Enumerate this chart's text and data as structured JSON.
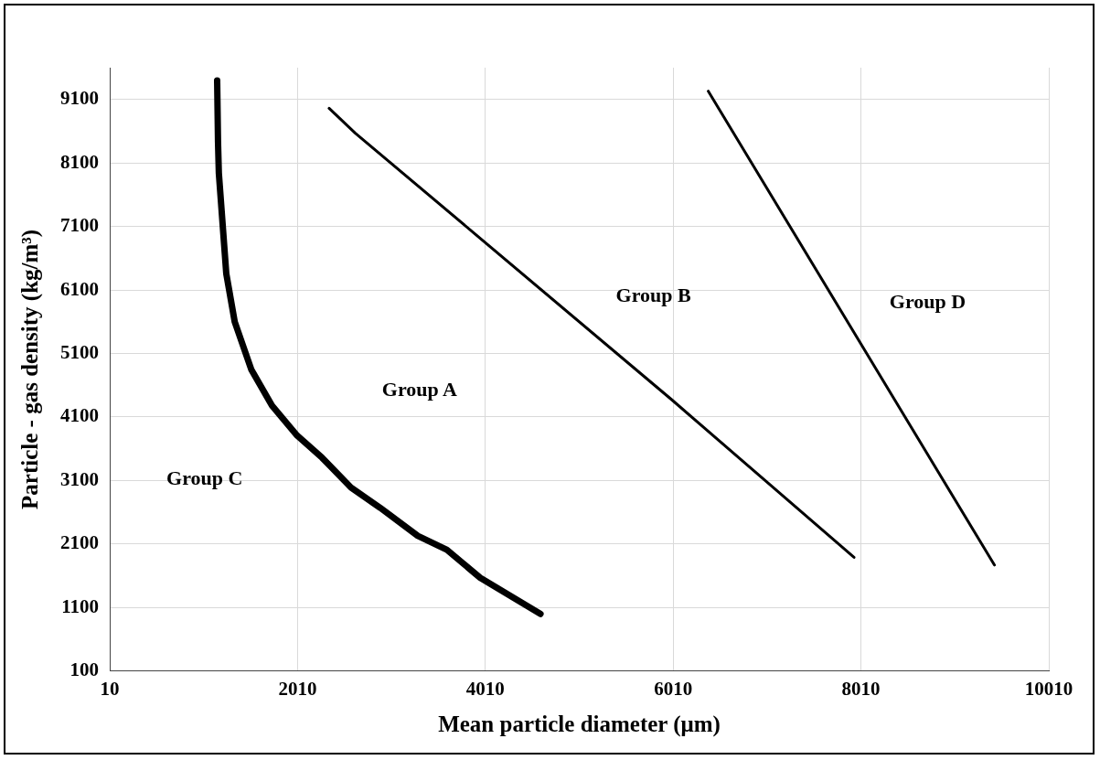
{
  "chart_data": {
    "type": "line",
    "xlabel": "Mean particle diameter (μm)",
    "ylabel": "Particle - gas density (kg/m³)",
    "xlim": [
      10,
      10010
    ],
    "xticks": [
      10,
      2010,
      4010,
      6010,
      8010,
      10010
    ],
    "ylim": [
      100,
      9600
    ],
    "yticks": [
      100,
      1100,
      2100,
      3100,
      4100,
      5100,
      6100,
      7100,
      8100,
      9100
    ],
    "grid": true,
    "legend": false,
    "marker": "none",
    "line_style": "solid",
    "series": [
      {
        "color": "#000000",
        "x": [
          1154,
          1163,
          1172,
          1251,
          1341,
          1517,
          1738,
          2005,
          2271,
          2580,
          2891,
          3290,
          3600,
          3955,
          4597
        ],
        "values": [
          9400,
          8440,
          7940,
          6360,
          5600,
          4850,
          4280,
          3810,
          3460,
          2990,
          2670,
          2230,
          2010,
          1570,
          1000
        ]
      },
      {
        "color": "#000000",
        "x": [
          2346,
          2625,
          5997,
          7936
        ],
        "values": [
          8960,
          8570,
          4370,
          1890
        ]
      },
      {
        "color": "#000000",
        "x": [
          6384,
          9431
        ],
        "values": [
          9230,
          1770
        ]
      }
    ],
    "annotations": [
      "Group A",
      "Group B",
      "Group C",
      "Group D"
    ]
  }
}
